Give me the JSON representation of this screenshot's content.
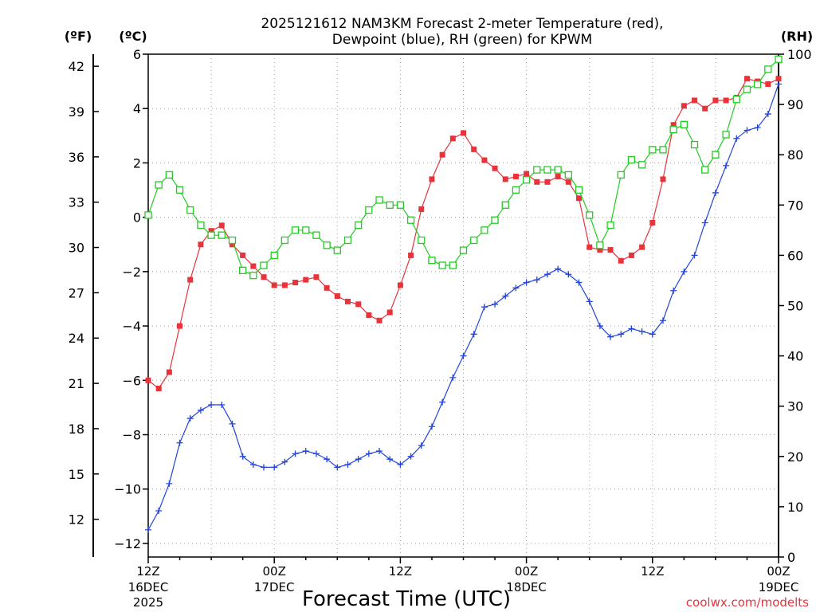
{
  "chart_data": {
    "type": "line",
    "title_line1": "2025121612 NAM3KM Forecast 2-meter Temperature (red),",
    "title_line2": "Dewpoint (blue), RH (green) for KPWM",
    "xlabel": "Forecast Time (UTC)",
    "credit": "coolwx.com/modelts",
    "unit_f": "(ºF)",
    "unit_c": "(ºC)",
    "unit_rh": "(RH)",
    "grid": true,
    "x_hours": [
      0,
      1,
      2,
      3,
      4,
      5,
      6,
      7,
      8,
      9,
      10,
      11,
      12,
      13,
      14,
      15,
      16,
      17,
      18,
      19,
      20,
      21,
      22,
      23,
      24,
      25,
      26,
      27,
      28,
      29,
      30,
      31,
      32,
      33,
      34,
      35,
      36,
      37,
      38,
      39,
      40,
      41,
      42,
      43,
      44,
      45,
      46,
      47,
      48,
      49,
      50,
      51,
      52,
      53,
      54,
      55,
      56,
      57,
      58,
      59,
      60
    ],
    "xlim_hours": [
      0,
      60
    ],
    "x_ticks": [
      {
        "h": 0,
        "line1": "12Z",
        "line2": "16DEC",
        "line3": "2025"
      },
      {
        "h": 12,
        "line1": "00Z",
        "line2": "17DEC",
        "line3": ""
      },
      {
        "h": 24,
        "line1": "12Z",
        "line2": "",
        "line3": ""
      },
      {
        "h": 36,
        "line1": "00Z",
        "line2": "18DEC",
        "line3": ""
      },
      {
        "h": 48,
        "line1": "12Z",
        "line2": "",
        "line3": ""
      },
      {
        "h": 60,
        "line1": "00Z",
        "line2": "19DEC",
        "line3": ""
      }
    ],
    "ylim_c": [
      -12.5,
      6
    ],
    "y_ticks_c": [
      -12,
      -10,
      -8,
      -6,
      -4,
      -2,
      0,
      2,
      4,
      6
    ],
    "y_ticks_c_labels": [
      "−12",
      "−10",
      "−8",
      "−6",
      "−4",
      "−2",
      "0",
      "2",
      "4",
      "6"
    ],
    "y_ticks_f": [
      12,
      15,
      18,
      21,
      24,
      27,
      30,
      33,
      36,
      39,
      42
    ],
    "y_ticks_f_labels": [
      "12",
      "15",
      "18",
      "21",
      "24",
      "27",
      "30",
      "33",
      "36",
      "39",
      "42"
    ],
    "ylim_rh": [
      0,
      100
    ],
    "y_ticks_rh": [
      0,
      10,
      20,
      30,
      40,
      50,
      60,
      70,
      80,
      90,
      100
    ],
    "y_ticks_rh_labels": [
      "0",
      "10",
      "20",
      "30",
      "40",
      "50",
      "60",
      "70",
      "80",
      "90",
      "100"
    ],
    "series": [
      {
        "name": "Temperature",
        "units": "°C",
        "color": "#e8333a",
        "marker": "filled-square",
        "values": [
          -6.0,
          -6.3,
          -5.7,
          -4.0,
          -2.3,
          -1.0,
          -0.5,
          -0.3,
          -1.0,
          -1.4,
          -1.8,
          -2.2,
          -2.5,
          -2.5,
          -2.4,
          -2.3,
          -2.2,
          -2.6,
          -2.9,
          -3.1,
          -3.2,
          -3.6,
          -3.8,
          -3.5,
          -2.5,
          -1.4,
          0.3,
          1.4,
          2.3,
          2.9,
          3.1,
          2.5,
          2.1,
          1.8,
          1.4,
          1.5,
          1.6,
          1.3,
          1.3,
          1.5,
          1.3,
          0.7,
          -1.1,
          -1.2,
          -1.2,
          -1.6,
          -1.4,
          -1.1,
          -0.2,
          1.4,
          3.4,
          4.1,
          4.3,
          4.0,
          4.3,
          4.3,
          4.4,
          5.1,
          5.0,
          4.9,
          5.1
        ]
      },
      {
        "name": "Dewpoint",
        "units": "°C",
        "color": "#2244dd",
        "marker": "plus",
        "values": [
          -11.5,
          -10.8,
          -9.8,
          -8.3,
          -7.4,
          -7.1,
          -6.9,
          -6.9,
          -7.6,
          -8.8,
          -9.1,
          -9.2,
          -9.2,
          -9.0,
          -8.7,
          -8.6,
          -8.7,
          -8.9,
          -9.2,
          -9.1,
          -8.9,
          -8.7,
          -8.6,
          -8.9,
          -9.1,
          -8.8,
          -8.4,
          -7.7,
          -6.8,
          -5.9,
          -5.1,
          -4.3,
          -3.3,
          -3.2,
          -2.9,
          -2.6,
          -2.4,
          -2.3,
          -2.1,
          -1.9,
          -2.1,
          -2.4,
          -3.1,
          -4.0,
          -4.4,
          -4.3,
          -4.1,
          -4.2,
          -4.3,
          -3.8,
          -2.7,
          -2.0,
          -1.4,
          -0.2,
          0.9,
          1.9,
          2.9,
          3.2,
          3.3,
          3.8,
          4.9
        ]
      },
      {
        "name": "RH",
        "units": "%",
        "color": "#22cc22",
        "marker": "open-square",
        "values": [
          68,
          74,
          76,
          73,
          69,
          66,
          64,
          64,
          63,
          57,
          56,
          58,
          60,
          63,
          65,
          65,
          64,
          62,
          61,
          63,
          66,
          69,
          71,
          70,
          70,
          67,
          63,
          59,
          58,
          58,
          61,
          63,
          65,
          67,
          70,
          73,
          75,
          77,
          77,
          77,
          76,
          73,
          68,
          62,
          66,
          76,
          79,
          78,
          81,
          81,
          85,
          86,
          82,
          77,
          80,
          84,
          91,
          93,
          94,
          97,
          99
        ]
      }
    ]
  }
}
